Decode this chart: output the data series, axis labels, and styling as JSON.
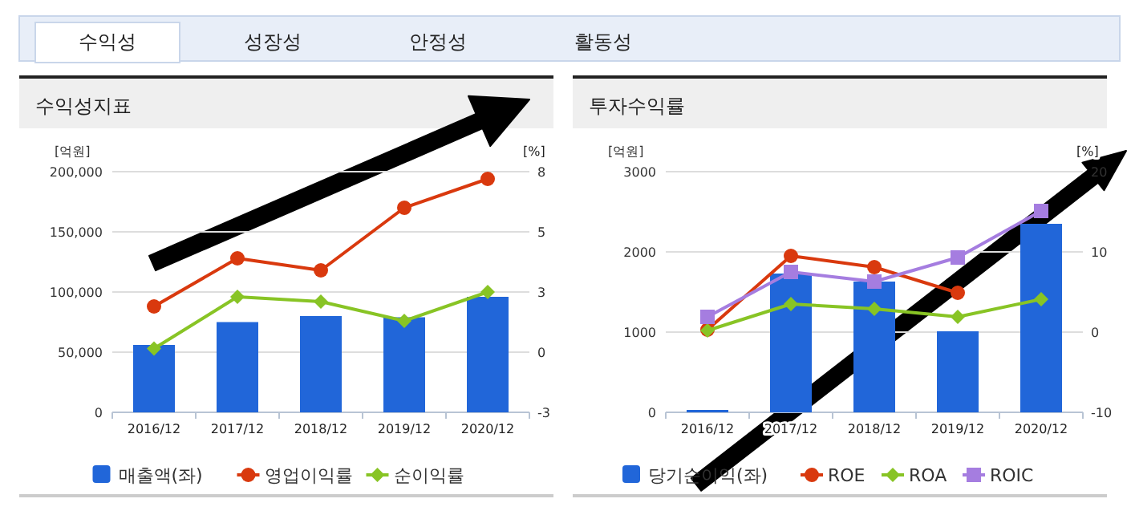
{
  "chart_data": [
    {
      "type": "bar",
      "title": "수익성지표",
      "ylabel": "[억원]",
      "y2label": "[%]",
      "annotations": [
        "수익성",
        "성장성",
        "안정성",
        "활동성"
      ],
      "categories": [
        "2016/12",
        "2017/12",
        "2018/12",
        "2019/12",
        "2020/12"
      ],
      "ylim": [
        0,
        200000
      ],
      "yticks": [
        {
          "value": 0,
          "label": "0"
        },
        {
          "value": 50000,
          "label": "50,000"
        },
        {
          "value": 100000,
          "label": "100,000"
        },
        {
          "value": 150000,
          "label": "150,000"
        },
        {
          "value": 200000,
          "label": "200,000"
        }
      ],
      "y2lim": [
        -2.5,
        7.5
      ],
      "y2ticks": [
        {
          "value": -2.5,
          "label": "-3"
        },
        {
          "value": 0,
          "label": "0"
        },
        {
          "value": 2.5,
          "label": "3"
        },
        {
          "value": 5,
          "label": "5"
        },
        {
          "value": 7.5,
          "label": "8"
        }
      ],
      "grid": "y",
      "legend": "bottom",
      "series": [
        {
          "name": "매출액(좌)",
          "type": "bar",
          "color": "#2166d9",
          "values": [
            56000,
            75000,
            80000,
            79000,
            96000
          ]
        },
        {
          "name": "영업이익률",
          "type": "line",
          "axis": "y2",
          "marker": "circle",
          "color": "#d9390e",
          "values": [
            1.9,
            3.9,
            3.4,
            6.0,
            7.2
          ]
        },
        {
          "name": "순이익률",
          "type": "line",
          "axis": "y2",
          "marker": "diamond",
          "color": "#88c425",
          "values": [
            0.15,
            2.3,
            2.1,
            1.3,
            2.5
          ]
        }
      ]
    },
    {
      "type": "bar",
      "title": "투자수익률",
      "ylabel": "[억원]",
      "y2label": "[%]",
      "categories": [
        "2016/12",
        "2017/12",
        "2018/12",
        "2019/12",
        "2020/12"
      ],
      "ylim": [
        0,
        3000
      ],
      "yticks": [
        0,
        1000,
        2000,
        3000
      ],
      "y2lim": [
        -10,
        20
      ],
      "y2ticks": [
        -10,
        0,
        10,
        20
      ],
      "grid": "y",
      "legend": "bottom",
      "series": [
        {
          "name": "당기순이익(좌)",
          "type": "bar",
          "color": "#2166d9",
          "values": [
            30,
            1730,
            1630,
            1010,
            2350
          ]
        },
        {
          "name": "ROE",
          "type": "line",
          "axis": "y2",
          "marker": "circle",
          "color": "#d9390e",
          "values": [
            0.3,
            9.5,
            8.1,
            4.9,
            null
          ]
        },
        {
          "name": "ROA",
          "type": "line",
          "axis": "y2",
          "marker": "diamond",
          "color": "#88c425",
          "values": [
            0.2,
            3.5,
            2.9,
            1.9,
            4.1
          ]
        },
        {
          "name": "ROIC",
          "type": "line",
          "axis": "y2",
          "marker": "square",
          "color": "#a57de0",
          "values": [
            1.9,
            7.5,
            6.3,
            9.3,
            15.1
          ]
        }
      ]
    }
  ]
}
